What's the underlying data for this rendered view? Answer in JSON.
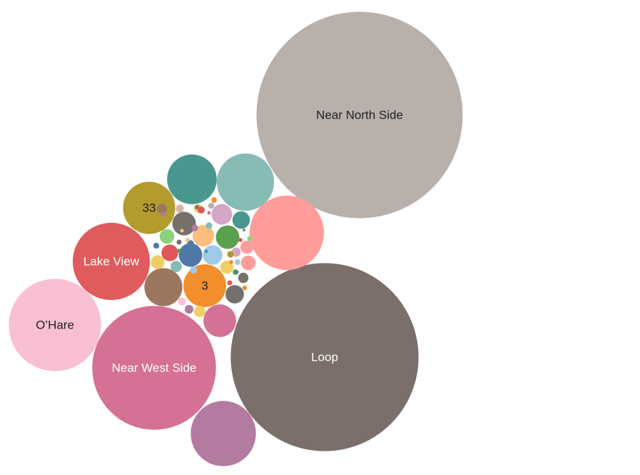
{
  "chart_data": {
    "type": "bubble",
    "bubbles": [
      {
        "label": "Near North Side",
        "value": 100,
        "color": "#b8b0ab",
        "label_color": "#222222"
      },
      {
        "label": "Loop",
        "value": 83,
        "color": "#7a6f6b",
        "label_color": "#ffffff"
      },
      {
        "label": "Near West Side",
        "value": 36,
        "color": "#d47194",
        "label_color": "#ffffff"
      },
      {
        "label": "O’Hare",
        "value": 20,
        "color": "#f9bfd3",
        "label_color": "#222222"
      },
      {
        "label": "Lake View",
        "value": 14,
        "color": "#e05b5d",
        "label_color": "#ffffff"
      },
      {
        "label": "",
        "value": 13,
        "color": "#ff9d9a",
        "label_color": "#222222"
      },
      {
        "label": "",
        "value": 10,
        "color": "#b47ba1",
        "label_color": "#ffffff"
      },
      {
        "label": "",
        "value": 7.7,
        "color": "#87bcb5",
        "label_color": "#222222"
      },
      {
        "label": "",
        "value": 5.8,
        "color": "#4a9790",
        "label_color": "#ffffff"
      },
      {
        "label": "33",
        "value": 6.4,
        "color": "#b39b2e",
        "label_color": "#222222"
      },
      {
        "label": "3",
        "value": 4.3,
        "color": "#f28e2b",
        "label_color": "#222222"
      },
      {
        "label": "",
        "value": 3.4,
        "color": "#9c7760",
        "label_color": "#ffffff"
      },
      {
        "label": "",
        "value": 2.5,
        "color": "#d37295",
        "label_color": "#ffffff"
      },
      {
        "label": "",
        "value": 1.3,
        "color": "#76706d",
        "label_color": "#ffffff"
      },
      {
        "label": "",
        "value": 1.3,
        "color": "#4e79a7",
        "label_color": "#ffffff"
      },
      {
        "label": "",
        "value": 1.3,
        "color": "#59a14f",
        "label_color": "#ffffff"
      },
      {
        "label": "",
        "value": 1.1,
        "color": "#ffbe7d",
        "label_color": "#222222"
      },
      {
        "label": "",
        "value": 1.0,
        "color": "#d4a6c8",
        "label_color": "#222222"
      },
      {
        "label": "",
        "value": 0.9,
        "color": "#a0cbe8",
        "label_color": "#222222"
      },
      {
        "label": "",
        "value": 0.8,
        "color": "#76706d",
        "label_color": "#ffffff"
      },
      {
        "label": "",
        "value": 0.72,
        "color": "#4a9790",
        "label_color": "#ffffff"
      },
      {
        "label": "",
        "value": 0.65,
        "color": "#e15759",
        "label_color": "#ffffff"
      },
      {
        "label": "",
        "value": 0.5,
        "color": "#8cd17d",
        "label_color": "#222222"
      },
      {
        "label": "",
        "value": 0.5,
        "color": "#ff9d9a",
        "label_color": "#222222"
      },
      {
        "label": "",
        "value": 0.45,
        "color": "#f1ce63",
        "label_color": "#222222"
      },
      {
        "label": "",
        "value": 0.4,
        "color": "#ff9d9a",
        "label_color": "#222222"
      },
      {
        "label": "",
        "value": 0.4,
        "color": "#f1ce63",
        "label_color": "#222222"
      },
      {
        "label": "",
        "value": 0.3,
        "color": "#86bcb6",
        "label_color": "#222222"
      },
      {
        "label": "",
        "value": 0.3,
        "color": "#f1ce63",
        "label_color": "#222222"
      },
      {
        "label": "",
        "value": 0.25,
        "color": "#79706e",
        "label_color": "#ffffff"
      },
      {
        "label": "",
        "value": 0.22,
        "color": "#9d7660",
        "label_color": "#ffffff"
      },
      {
        "label": "",
        "value": 0.2,
        "color": "#d4a6c8",
        "label_color": "#222222"
      },
      {
        "label": "",
        "value": 0.18,
        "color": "#b07aa1",
        "label_color": "#ffffff"
      },
      {
        "label": "",
        "value": 0.17,
        "color": "#f1ce63",
        "label_color": "#222222"
      },
      {
        "label": "",
        "value": 0.15,
        "color": "#d7b5a6",
        "label_color": "#222222"
      },
      {
        "label": "",
        "value": 0.14,
        "color": "#fabfd2",
        "label_color": "#222222"
      },
      {
        "label": "",
        "value": 0.12,
        "color": "#e15759",
        "label_color": "#ffffff"
      },
      {
        "label": "",
        "value": 0.12,
        "color": "#a0cbe8",
        "label_color": "#222222"
      },
      {
        "label": "",
        "value": 0.11,
        "color": "#4e79a7",
        "label_color": "#ffffff"
      },
      {
        "label": "",
        "value": 0.1,
        "color": "#b6992d",
        "label_color": "#222222"
      },
      {
        "label": "",
        "value": 0.1,
        "color": "#b07aa1",
        "label_color": "#ffffff"
      },
      {
        "label": "",
        "value": 0.1,
        "color": "#86bcb6",
        "label_color": "#222222"
      },
      {
        "label": "",
        "value": 0.09,
        "color": "#bab0ac",
        "label_color": "#222222"
      },
      {
        "label": "",
        "value": 0.08,
        "color": "#4e79a7",
        "label_color": "#ffffff"
      },
      {
        "label": "",
        "value": 0.08,
        "color": "#a0cbe8",
        "label_color": "#222222"
      },
      {
        "label": "",
        "value": 0.07,
        "color": "#f28e2b",
        "label_color": "#222222"
      },
      {
        "label": "",
        "value": 0.07,
        "color": "#59a14f",
        "label_color": "#ffffff"
      },
      {
        "label": "",
        "value": 0.06,
        "color": "#e15759",
        "label_color": "#ffffff"
      },
      {
        "label": "",
        "value": 0.06,
        "color": "#8cd17d",
        "label_color": "#222222"
      },
      {
        "label": "",
        "value": 0.06,
        "color": "#b07aa1",
        "label_color": "#ffffff"
      },
      {
        "label": "",
        "value": 0.06,
        "color": "#79706e",
        "label_color": "#ffffff"
      },
      {
        "label": "",
        "value": 0.05,
        "color": "#f28e2b",
        "label_color": "#222222"
      },
      {
        "label": "",
        "value": 0.05,
        "color": "#9d7660",
        "label_color": "#ffffff"
      },
      {
        "label": "",
        "value": 0.04,
        "color": "#ffbe7d",
        "label_color": "#222222"
      },
      {
        "label": "",
        "value": 0.04,
        "color": "#f28e2b",
        "label_color": "#222222"
      },
      {
        "label": "",
        "value": 0.04,
        "color": "#59a14f",
        "label_color": "#ffffff"
      },
      {
        "label": "",
        "value": 0.04,
        "color": "#e15759",
        "label_color": "#ffffff"
      },
      {
        "label": "",
        "value": 0.03,
        "color": "#f1ce63",
        "label_color": "#222222"
      },
      {
        "label": "",
        "value": 0.03,
        "color": "#4e79a7",
        "label_color": "#ffffff"
      },
      {
        "label": "",
        "value": 0.03,
        "color": "#d37295",
        "label_color": "#ffffff"
      },
      {
        "label": "",
        "value": 0.03,
        "color": "#499894",
        "label_color": "#ffffff"
      },
      {
        "label": "",
        "value": 0.02,
        "color": "#9d7660",
        "label_color": "#ffffff"
      }
    ]
  }
}
